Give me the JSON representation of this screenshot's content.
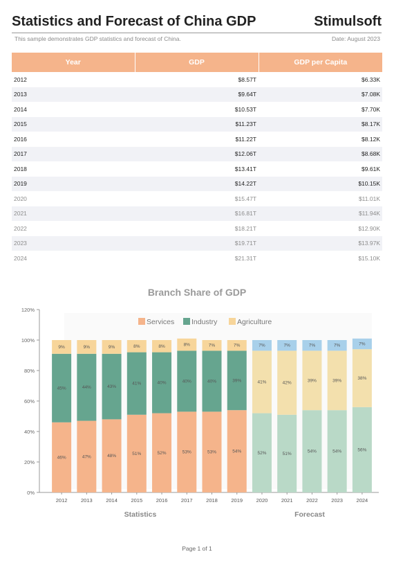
{
  "header": {
    "title": "Statistics and Forecast of China GDP",
    "brand": "Stimulsoft",
    "subtitle": "This sample demonstrates GDP statistics and forecast of China.",
    "date": "Date: August 2023"
  },
  "table": {
    "columns": [
      "Year",
      "GDP",
      "GDP per Capita"
    ],
    "rows": [
      {
        "year": "2012",
        "gdp": "$8.57T",
        "capita": "$6.33K",
        "forecast": false
      },
      {
        "year": "2013",
        "gdp": "$9.64T",
        "capita": "$7.08K",
        "forecast": false
      },
      {
        "year": "2014",
        "gdp": "$10.53T",
        "capita": "$7.70K",
        "forecast": false
      },
      {
        "year": "2015",
        "gdp": "$11.23T",
        "capita": "$8.17K",
        "forecast": false
      },
      {
        "year": "2016",
        "gdp": "$11.22T",
        "capita": "$8.12K",
        "forecast": false
      },
      {
        "year": "2017",
        "gdp": "$12.06T",
        "capita": "$8.68K",
        "forecast": false
      },
      {
        "year": "2018",
        "gdp": "$13.41T",
        "capita": "$9.61K",
        "forecast": false
      },
      {
        "year": "2019",
        "gdp": "$14.22T",
        "capita": "$10.15K",
        "forecast": false
      },
      {
        "year": "2020",
        "gdp": "$15.47T",
        "capita": "$11.01K",
        "forecast": true
      },
      {
        "year": "2021",
        "gdp": "$16.81T",
        "capita": "$11.94K",
        "forecast": true
      },
      {
        "year": "2022",
        "gdp": "$18.21T",
        "capita": "$12.90K",
        "forecast": true
      },
      {
        "year": "2023",
        "gdp": "$19.71T",
        "capita": "$13.97K",
        "forecast": true
      },
      {
        "year": "2024",
        "gdp": "$21.31T",
        "capita": "$15.10K",
        "forecast": true
      }
    ]
  },
  "chart_data": {
    "type": "bar",
    "stacked": true,
    "title": "Branch Share of GDP",
    "categories": [
      "2012",
      "2013",
      "2014",
      "2015",
      "2016",
      "2017",
      "2018",
      "2019",
      "2020",
      "2021",
      "2022",
      "2023",
      "2024"
    ],
    "series": [
      {
        "name": "Services",
        "values": [
          46,
          47,
          48,
          51,
          52,
          53,
          53,
          54,
          52,
          51,
          54,
          54,
          56
        ],
        "labels": [
          "46%",
          "47%",
          "48%",
          "51%",
          "52%",
          "53%",
          "53%",
          "54%",
          "52%",
          "51%",
          "54%",
          "54%",
          "56%"
        ]
      },
      {
        "name": "Industry",
        "values": [
          45,
          44,
          43,
          41,
          40,
          40,
          40,
          39,
          41,
          42,
          39,
          39,
          38
        ],
        "labels": [
          "45%",
          "44%",
          "43%",
          "41%",
          "40%",
          "40%",
          "40%",
          "39%",
          "41%",
          "42%",
          "39%",
          "39%",
          "38%"
        ]
      },
      {
        "name": "Agriculture",
        "values": [
          9,
          9,
          9,
          8,
          8,
          8,
          7,
          7,
          7,
          7,
          7,
          7,
          7
        ],
        "labels": [
          "9%",
          "9%",
          "9%",
          "8%",
          "8%",
          "8%",
          "7%",
          "7%",
          "7%",
          "7%",
          "7%",
          "7%",
          "7%"
        ]
      }
    ],
    "forecast_from_index": 8,
    "groups": [
      "Statistics",
      "Forecast"
    ],
    "yticks": [
      "0%",
      "20%",
      "40%",
      "60%",
      "80%",
      "100%",
      "120%"
    ],
    "ylim": [
      0,
      120
    ],
    "legend_position": "top",
    "colors": {
      "services": "#f5b48b",
      "industry": "#66a58f",
      "agriculture": "#f7d59a",
      "services_forecast": "#b9d9c7",
      "industry_forecast": "#f3e0ad",
      "agriculture_forecast": "#a8d0ea"
    }
  },
  "footer": {
    "page": "Page 1 of 1"
  }
}
